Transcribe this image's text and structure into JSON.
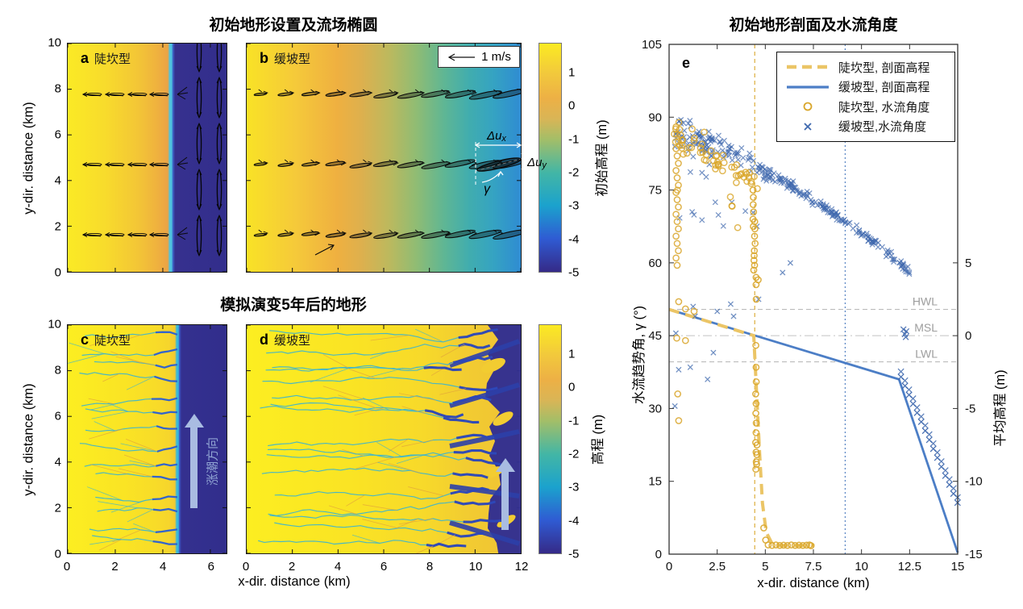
{
  "titles": {
    "top_left": "初始地形设置及流场椭圆",
    "bottom_left": "模拟演变5年后的地形",
    "right": "初始地形剖面及水流角度"
  },
  "axis": {
    "y_dir": "y-dir. distance (km)",
    "x_dir": "x-dir. distance (km)",
    "flow_angle": "水流趋势角, γ (°)",
    "mean_elev": "平均高程 (m)",
    "init_elev": "初始高程 (m)",
    "elev": "高程 (m)"
  },
  "panels": {
    "a": {
      "letter": "a",
      "name": "陡坎型"
    },
    "b": {
      "letter": "b",
      "name": "缓坡型"
    },
    "c": {
      "letter": "c",
      "name": "陡坎型"
    },
    "d": {
      "letter": "d",
      "name": "缓坡型"
    },
    "e": {
      "letter": "e"
    }
  },
  "annotations": {
    "scale_arrow": "1 m/s",
    "du": "Δu",
    "sub_x": "x",
    "sub_y": "y",
    "gamma": "γ",
    "flood_dir": "涨潮方向",
    "hwl": "HWL",
    "msl": "MSL",
    "lwl": "LWL"
  },
  "legend": [
    {
      "label": "陡坎型, 剖面高程",
      "marker": "dashed-gold-line"
    },
    {
      "label": "缓坡型, 剖面高程",
      "marker": "solid-blue-line"
    },
    {
      "label": "陡坎型, 水流角度",
      "marker": "gold-circle"
    },
    {
      "label": "缓坡型,水流角度",
      "marker": "blue-x"
    }
  ],
  "colors": {
    "gold": "#D9A62B",
    "gold_line": "#EBC566",
    "blue": "#4C7EC6",
    "blue_marker": "#3E68AE",
    "navy": "#34308F",
    "gray_line": "#B3B3B3",
    "frame": "#333333",
    "arrow_fill": "#A9BCE2",
    "arrow_text": "#8FA3D2"
  },
  "colorbar": {
    "ticks": [
      1,
      0,
      -1,
      -2,
      -3,
      -4,
      -5
    ],
    "vmin": -5,
    "vmax": 1.9,
    "colormap": "parula"
  },
  "chart_data": [
    {
      "id": "a",
      "type": "heatmap",
      "panel": "陡坎型 (steep-bank) initial bathymetry",
      "x_km": [
        0,
        6.68
      ],
      "x_ticks": [
        0,
        2,
        4,
        6
      ],
      "y_km": [
        0,
        10
      ],
      "y_ticks": [
        0,
        2,
        4,
        6,
        8,
        10
      ],
      "elevation_m": {
        "at_x0": 1.8,
        "at_edge": 0,
        "edge_km": 4.55,
        "basin": "<= -5 (deep basin)"
      },
      "clim": [
        -5,
        1.9
      ],
      "overlay": "tidal flow ellipses; nearly shore-parallel on flat, shore-normal (vertical) in basin"
    },
    {
      "id": "b",
      "type": "heatmap",
      "panel": "缓坡型 (mild-slope) initial bathymetry",
      "x_km": [
        0,
        12
      ],
      "x_ticks": [
        0,
        2,
        4,
        6,
        8,
        10,
        12
      ],
      "y_km": [
        0,
        10
      ],
      "y_ticks": [
        0,
        2,
        4,
        6,
        8,
        10
      ],
      "elevation_m": {
        "at_x0": 1.8,
        "slope_m_per_km": -0.4,
        "at_x12": -3.1
      },
      "clim": [
        -5,
        1.9
      ],
      "overlay": "tidal flow ellipses tilted, growing seaward; scale arrow 1 m/s"
    },
    {
      "id": "c",
      "type": "heatmap",
      "panel": "陡坎型 after 5 yr of simulated evolution",
      "x_km": [
        0,
        6.68
      ],
      "x_ticks": [
        0,
        2,
        4,
        6
      ],
      "y_km": [
        0,
        10
      ],
      "y_ticks": [
        0,
        2,
        4,
        6,
        8,
        10
      ],
      "clim": [
        -5,
        1.9
      ],
      "features": "dendritic tidal channels on flat (0-4.6 km), deep basin beyond; flood direction arrow 涨潮方向"
    },
    {
      "id": "d",
      "type": "heatmap",
      "panel": "缓坡型 after 5 yr of simulated evolution",
      "x_km": [
        0,
        12
      ],
      "x_ticks": [
        0,
        2,
        4,
        6,
        8,
        10,
        12
      ],
      "y_km": [
        0,
        10
      ],
      "y_ticks": [
        0,
        2,
        4,
        6,
        8,
        10
      ],
      "clim": [
        -5,
        1.9
      ],
      "features": "long dendritic channel network 0-10 km widening into deep channels and basin 10-12 km; flood arrow"
    },
    {
      "id": "e",
      "type": "line+scatter",
      "title": "初始地形剖面及水流角度",
      "xlabel": "x-dir. distance (km)",
      "xlim": [
        0,
        15
      ],
      "x_ticks": [
        0,
        2.5,
        5,
        7.5,
        10,
        12.5,
        15
      ],
      "ylabel_left": "水流趋势角, γ (°)",
      "ylim_left": [
        0,
        105
      ],
      "y_ticks_left": [
        0,
        15,
        30,
        45,
        60,
        75,
        90,
        105
      ],
      "ylabel_right": "平均高程 (m)",
      "y_ticks_right": [
        5,
        0,
        -5,
        -10,
        -15
      ],
      "right_axis_map": "elevation m = (γ_axis - 45) / 3",
      "water_levels_m": {
        "HWL": 1.8,
        "MSL": 0,
        "LWL": -1.8
      },
      "v_refs": [
        {
          "x": 4.45,
          "style": "dashed",
          "color": "#D9A62B",
          "meaning": "steep-bank flat edge"
        },
        {
          "x": 9.15,
          "style": "dotted",
          "color": "#4A7ABF",
          "meaning": "mild-slope LWL crossing"
        }
      ],
      "profiles": {
        "steep": {
          "name": "陡坎型, 剖面高程",
          "axis": "right",
          "points_m": [
            [
              0,
              1.8
            ],
            [
              4.4,
              0
            ],
            [
              4.55,
              -4
            ],
            [
              4.7,
              -8
            ],
            [
              4.85,
              -11.5
            ],
            [
              5.05,
              -13.5
            ],
            [
              5.4,
              -14.4
            ],
            [
              7.55,
              -14.4
            ]
          ]
        },
        "mild": {
          "name": "缓坡型, 剖面高程",
          "axis": "right",
          "points_m": [
            [
              0,
              1.8
            ],
            [
              11.95,
              -3.0
            ],
            [
              15,
              -14.9
            ]
          ]
        }
      },
      "scatter": {
        "mild_band_model": {
          "seed": 11,
          "count": 290,
          "x0": 0.3,
          "x1": 12.55,
          "x_pow": 1.18,
          "trend": [
            88,
            -1.45,
            -0.075
          ],
          "sd0": 4.0,
          "sd_slope": 0.52,
          "sd_min": 0.85,
          "tail_p": 0.16,
          "tail_max": 17,
          "tail_xmax": 4.6,
          "ymax": 89.5
        },
        "mild_low_outliers": [
          [
            0.35,
            45.5
          ],
          [
            0.5,
            38
          ],
          [
            0.3,
            30.5
          ],
          [
            1.1,
            38.5
          ],
          [
            1.25,
            51
          ],
          [
            1.35,
            49
          ],
          [
            2.0,
            36
          ],
          [
            2.3,
            41.5
          ],
          [
            2.5,
            50
          ],
          [
            3.2,
            51.5
          ],
          [
            3.35,
            49
          ],
          [
            4.65,
            52.5
          ],
          [
            5.9,
            58
          ],
          [
            6.3,
            60
          ]
        ],
        "mild_msl_cluster": [
          [
            12.18,
            46.3
          ],
          [
            12.25,
            45.3
          ],
          [
            12.3,
            44.7
          ],
          [
            12.33,
            45.9
          ]
        ],
        "mild_slope_trail": {
          "x0": 12.05,
          "y0": 36.5,
          "dx": 0.21,
          "dy": -1.85,
          "n": 15
        },
        "steep_band_model": {
          "seed": 5,
          "count": 62,
          "x0": 0.25,
          "x1": 4.62,
          "x_pow": 1,
          "trend": [
            86.5,
            -2.1,
            0
          ],
          "sd0": 3.4,
          "sd_slope": 0.15,
          "sd_min": 1.6,
          "tail_p": 0.12,
          "tail_max": 14,
          "tail_xmax": 4.6,
          "ymax": 89
        },
        "steep_left_column": {
          "x": 0.42,
          "y": [
            88,
            86.5,
            85,
            83.5,
            82,
            80.5,
            79,
            77.5,
            76,
            74.5,
            73,
            71.5,
            70,
            68.5,
            67,
            65.5,
            64,
            62.5,
            61,
            59.5
          ]
        },
        "steep_low_outliers": [
          [
            0.5,
            52
          ],
          [
            0.85,
            50.5
          ],
          [
            1.3,
            50
          ],
          [
            0.4,
            44.5
          ],
          [
            0.85,
            44
          ],
          [
            0.45,
            33
          ],
          [
            0.5,
            27.5
          ]
        ],
        "steep_cliff_streaks": [
          [
            4.36,
            75
          ],
          [
            4.38,
            73.5
          ],
          [
            4.37,
            72
          ],
          [
            4.39,
            70.5
          ],
          [
            4.36,
            69
          ],
          [
            4.38,
            67.5
          ],
          [
            4.45,
            68.5
          ],
          [
            4.46,
            67
          ],
          [
            4.44,
            65.5
          ],
          [
            4.47,
            64
          ],
          [
            4.43,
            62.5
          ],
          [
            4.42,
            61.5
          ],
          [
            4.41,
            60.5
          ],
          [
            4.44,
            59.5
          ],
          [
            4.4,
            58.5
          ],
          [
            4.52,
            57
          ],
          [
            4.63,
            56.5
          ],
          [
            4.52,
            55.5
          ],
          [
            4.53,
            52.5
          ],
          [
            4.51,
            43
          ],
          [
            4.52,
            38.5
          ],
          [
            4.53,
            35.5
          ],
          [
            4.5,
            33
          ],
          [
            4.52,
            31
          ],
          [
            4.51,
            29
          ],
          [
            4.53,
            27
          ],
          [
            4.52,
            25
          ],
          [
            4.5,
            23
          ],
          [
            4.52,
            21
          ],
          [
            4.53,
            19
          ],
          [
            4.51,
            17.5
          ],
          [
            4.55,
            18.5
          ],
          [
            4.56,
            20.5
          ],
          [
            4.57,
            22.5
          ]
        ],
        "steep_flat_tail": [
          [
            4.92,
            5.4
          ],
          [
            5.02,
            2.9
          ],
          [
            5.15,
            1.9
          ],
          [
            5.35,
            1.8
          ],
          [
            5.55,
            1.9
          ],
          [
            5.75,
            1.8
          ],
          [
            5.95,
            1.85
          ],
          [
            6.15,
            1.8
          ],
          [
            6.35,
            1.9
          ],
          [
            6.55,
            1.8
          ],
          [
            6.75,
            1.85
          ],
          [
            6.95,
            1.8
          ],
          [
            7.15,
            1.85
          ],
          [
            7.3,
            1.9
          ],
          [
            7.38,
            1.75
          ]
        ]
      },
      "legend_position": "upper right"
    }
  ]
}
